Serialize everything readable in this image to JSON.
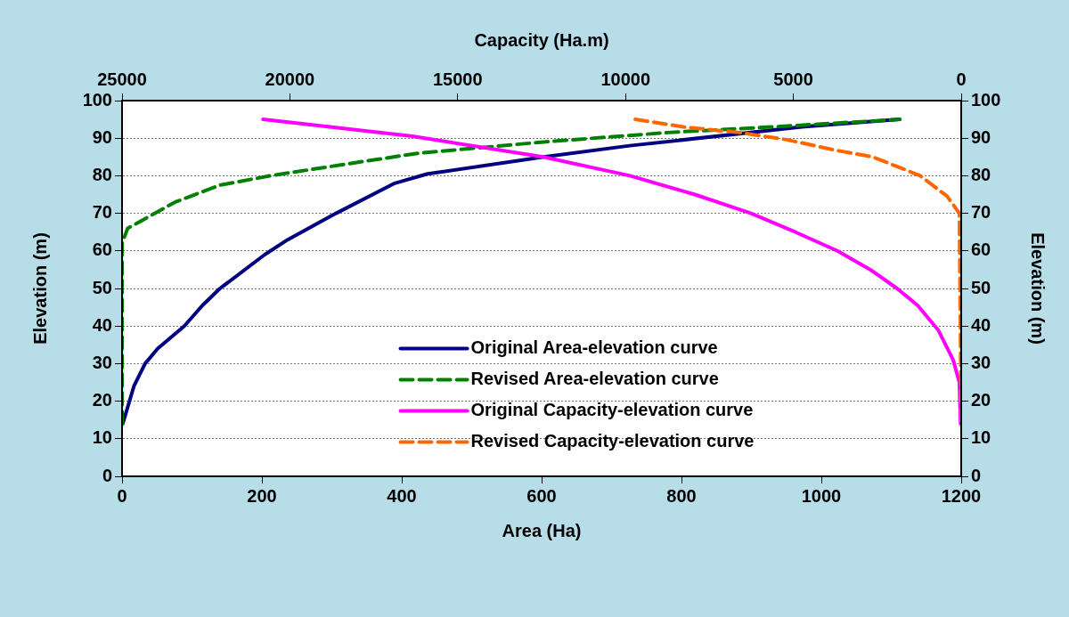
{
  "chart_data": {
    "type": "line",
    "xlabel": "Area (Ha)",
    "x2label": "Capacity (Ha.m)",
    "ylabel": "Elevation (m)",
    "y2label": "Elevation (m)",
    "xlim": [
      0,
      1200
    ],
    "xticks": [
      0,
      200,
      400,
      600,
      800,
      1000,
      1200
    ],
    "x2lim": [
      25000,
      0
    ],
    "x2ticks": [
      25000,
      20000,
      15000,
      10000,
      5000,
      0
    ],
    "ylim": [
      0,
      100
    ],
    "yticks": [
      0,
      10,
      20,
      30,
      40,
      50,
      60,
      70,
      80,
      90,
      100
    ],
    "y2lim": [
      0,
      100
    ],
    "y2ticks": [
      0,
      10,
      20,
      30,
      40,
      50,
      60,
      70,
      80,
      90,
      100
    ],
    "grid": "y",
    "legend": "center",
    "marker": "none",
    "series": [
      {
        "name": "Original Area-elevation curve",
        "color": "#000080",
        "line_style": "solid",
        "x": [
          1,
          17,
          33,
          51,
          89,
          115,
          140,
          204,
          237,
          306,
          390,
          437,
          603,
          726,
          972,
          1112
        ],
        "values": [
          14,
          24,
          30,
          34,
          40,
          45.5,
          50,
          59,
          63,
          70,
          78,
          80.5,
          85,
          88,
          93,
          95
        ]
      },
      {
        "name": "Revised Area-elevation curve",
        "color": "#008000",
        "line_style": "dashed",
        "x": [
          0,
          0,
          8,
          76,
          140,
          212,
          352,
          424,
          603,
          781,
          930,
          1112
        ],
        "values": [
          14,
          62,
          66,
          73,
          77.5,
          80,
          84,
          86,
          89,
          91.5,
          93,
          95
        ]
      },
      {
        "name": "Original Capacity-elevation curve",
        "color": "#ff00ff",
        "line_style": "solid",
        "axis": "x2",
        "x": [
          20800,
          16350,
          12450,
          9870,
          7935,
          6260,
          4935,
          3690,
          2705,
          1910,
          1300,
          690,
          240,
          55,
          20
        ],
        "values": [
          95,
          90.5,
          85,
          80,
          75,
          70,
          65,
          60,
          55,
          50,
          45.5,
          39,
          31,
          25,
          14
        ]
      },
      {
        "name": "Revised Capacity-elevation curve",
        "color": "#ff6600",
        "line_style": "dashed",
        "axis": "x2",
        "x": [
          9710,
          8280,
          6610,
          5200,
          3690,
          2630,
          1220,
          425,
          55,
          0
        ],
        "values": [
          95,
          93,
          91.5,
          89.6,
          86.7,
          85,
          80,
          74.6,
          70,
          14
        ]
      }
    ]
  }
}
